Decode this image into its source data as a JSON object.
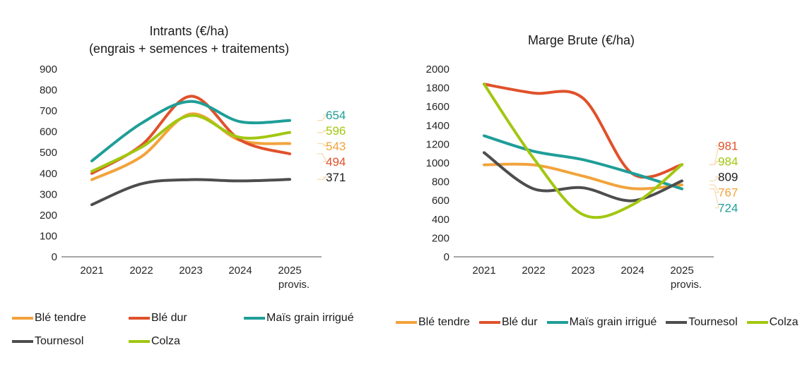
{
  "chart_data": [
    {
      "type": "line",
      "title": "Intrants (€/ha)",
      "subtitle": "(engrais + semences + traitements)",
      "categories": [
        "2021",
        "2022",
        "2023",
        "2024",
        "2025"
      ],
      "x_note": "provis.",
      "ylim": [
        0,
        900
      ],
      "ytick_step": 100,
      "legend_position": "bottom",
      "grid": false,
      "axis_color": "#A6A6A6",
      "tick_color": "#262626",
      "leader_color": "#F7DCB4",
      "series": [
        {
          "name": "Blé tendre",
          "color": "#F2A33C",
          "values": [
            370,
            480,
            685,
            558,
            543
          ],
          "end_label": "543"
        },
        {
          "name": "Blé dur",
          "color": "#E0512B",
          "values": [
            400,
            535,
            770,
            560,
            494
          ],
          "end_label": "494"
        },
        {
          "name": "Maïs grain irrigué",
          "color": "#1F9E98",
          "values": [
            460,
            640,
            745,
            648,
            654
          ],
          "end_label": "654"
        },
        {
          "name": "Tournesol",
          "color": "#4D4D4D",
          "values": [
            250,
            350,
            370,
            364,
            371
          ],
          "end_label": "371",
          "label_color": "#1A1A1A"
        },
        {
          "name": "Colza",
          "color": "#A2C711",
          "values": [
            410,
            525,
            678,
            572,
            596
          ],
          "end_label": "596"
        }
      ]
    },
    {
      "type": "line",
      "title": "Marge Brute (€/ha)",
      "categories": [
        "2021",
        "2022",
        "2023",
        "2024",
        "2025"
      ],
      "x_note": "provis.",
      "ylim": [
        0,
        2000
      ],
      "ytick_step": 200,
      "legend_position": "bottom",
      "grid": false,
      "axis_color": "#A6A6A6",
      "tick_color": "#262626",
      "leader_color": "#F7DCB4",
      "series": [
        {
          "name": "Blé tendre",
          "color": "#F2A33C",
          "values": [
            980,
            980,
            860,
            728,
            767
          ],
          "end_label": "767"
        },
        {
          "name": "Blé dur",
          "color": "#E0512B",
          "values": [
            1840,
            1745,
            1690,
            885,
            981
          ],
          "end_label": "981"
        },
        {
          "name": "Maïs grain irrigué",
          "color": "#1F9E98",
          "values": [
            1290,
            1125,
            1035,
            890,
            724
          ],
          "end_label": "724"
        },
        {
          "name": "Tournesol",
          "color": "#4D4D4D",
          "values": [
            1110,
            725,
            735,
            598,
            809
          ],
          "end_label": "809",
          "label_color": "#1A1A1A"
        },
        {
          "name": "Colza",
          "color": "#A2C711",
          "values": [
            1840,
            1050,
            450,
            555,
            984
          ],
          "end_label": "984"
        }
      ]
    }
  ]
}
